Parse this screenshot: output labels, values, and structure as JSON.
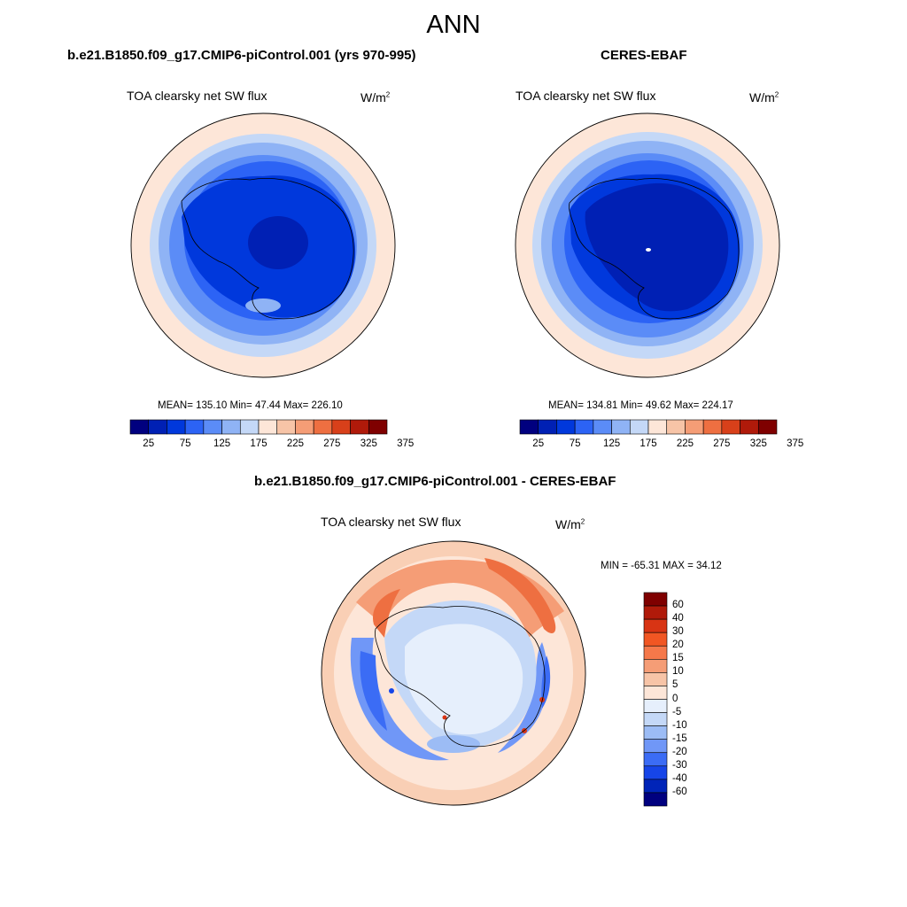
{
  "page": {
    "title": "ANN"
  },
  "panels": [
    {
      "id": "model",
      "title": "b.e21.B1850.f09_g17.CMIP6-piControl.001 (yrs 970-995)",
      "variable": "TOA clearsky net SW flux",
      "units_base": "W/m",
      "units_exp": "2",
      "stats": "MEAN= 135.10  Min=  47.44  Max= 226.10",
      "colorbar_labels": [
        "25",
        "75",
        "125",
        "175",
        "225",
        "275",
        "325",
        "375"
      ]
    },
    {
      "id": "obs",
      "title": "CERES-EBAF",
      "variable": "TOA clearsky net SW flux",
      "units_base": "W/m",
      "units_exp": "2",
      "stats": "MEAN= 134.81  Min=  49.62  Max= 224.17",
      "colorbar_labels": [
        "25",
        "75",
        "125",
        "175",
        "225",
        "275",
        "325",
        "375"
      ]
    },
    {
      "id": "diff",
      "title": "b.e21.B1850.f09_g17.CMIP6-piControl.001 - CERES-EBAF",
      "variable": "TOA clearsky net SW flux",
      "units_base": "W/m",
      "units_exp": "2",
      "stats": "MIN = -65.31 MAX =  34.12",
      "colorbar_labels": [
        "60",
        "40",
        "30",
        "20",
        "15",
        "10",
        "5",
        "0",
        "-5",
        "-10",
        "-15",
        "-20",
        "-30",
        "-40",
        "-60"
      ]
    }
  ],
  "colors": {
    "abs_colorbar": [
      "#00007f",
      "#0020b4",
      "#0038dc",
      "#2c63f5",
      "#5b8cf7",
      "#8fb3f5",
      "#c4d8f7",
      "#fde6d8",
      "#f7c4a7",
      "#f59d76",
      "#ee6f41",
      "#d8401a",
      "#b01a0a",
      "#7f0000"
    ],
    "diff_colorbar": [
      "#7f0000",
      "#b01a0a",
      "#d83414",
      "#f15623",
      "#f5784a",
      "#f59d76",
      "#f7c4a7",
      "#fde6d8",
      "#e6effc",
      "#c4d8f7",
      "#9cbcf5",
      "#7097f7",
      "#3b6cf5",
      "#1645e8",
      "#0024b8",
      "#00007f"
    ]
  }
}
